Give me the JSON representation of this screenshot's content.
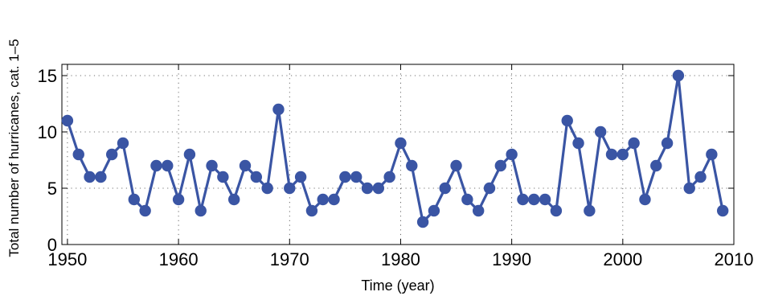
{
  "chart_data": {
    "type": "line",
    "title": "",
    "xlabel": "Time (year)",
    "ylabel": "Total number of hurricanes, cat. 1–5",
    "xlim": [
      1949.5,
      2010
    ],
    "ylim": [
      0,
      16
    ],
    "xticks": [
      1950,
      1960,
      1970,
      1980,
      1990,
      2000,
      2010
    ],
    "yticks": [
      0,
      5,
      10,
      15
    ],
    "grid": true,
    "grid_style": "dotted",
    "series": [
      {
        "color": "#3a55a4",
        "marker": "circle",
        "x": [
          1950,
          1951,
          1952,
          1953,
          1954,
          1955,
          1956,
          1957,
          1958,
          1959,
          1960,
          1961,
          1962,
          1963,
          1964,
          1965,
          1966,
          1967,
          1968,
          1969,
          1970,
          1971,
          1972,
          1973,
          1974,
          1975,
          1976,
          1977,
          1978,
          1979,
          1980,
          1981,
          1982,
          1983,
          1984,
          1985,
          1986,
          1987,
          1988,
          1989,
          1990,
          1991,
          1992,
          1993,
          1994,
          1995,
          1996,
          1997,
          1998,
          1999,
          2000,
          2001,
          2002,
          2003,
          2004,
          2005,
          2006,
          2007,
          2008,
          2009
        ],
        "y": [
          11,
          8,
          6,
          6,
          8,
          9,
          4,
          3,
          7,
          7,
          4,
          8,
          3,
          7,
          6,
          4,
          7,
          6,
          5,
          12,
          5,
          6,
          3,
          4,
          4,
          6,
          6,
          5,
          5,
          6,
          9,
          7,
          2,
          3,
          5,
          7,
          4,
          3,
          5,
          7,
          8,
          4,
          4,
          4,
          3,
          11,
          9,
          3,
          10,
          8,
          8,
          9,
          4,
          7,
          9,
          15,
          5,
          6,
          8,
          3
        ]
      }
    ]
  }
}
